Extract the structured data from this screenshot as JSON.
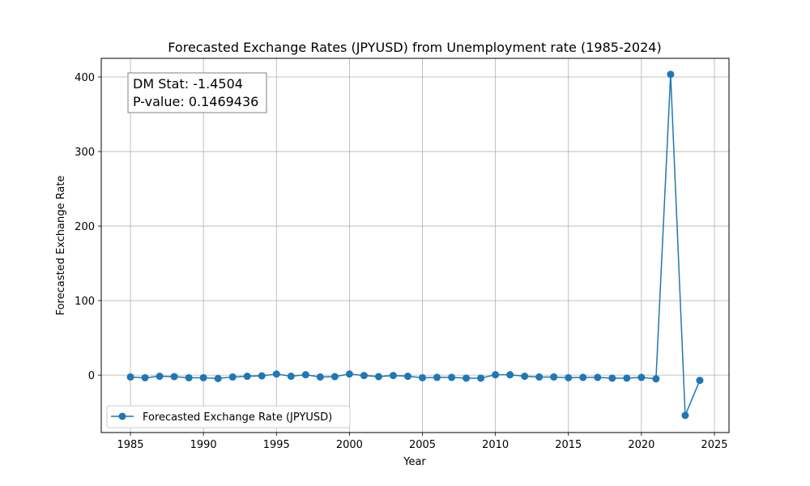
{
  "chart_data": {
    "type": "line",
    "title": "Forecasted Exchange Rates (JPYUSD) from Unemployment rate (1985-2024)",
    "xlabel": "Year",
    "ylabel": "Forecasted Exchange Rate",
    "xlim": [
      1983,
      2026
    ],
    "ylim": [
      -77,
      425
    ],
    "xticks": [
      1985,
      1990,
      1995,
      2000,
      2005,
      2010,
      2015,
      2020,
      2025
    ],
    "yticks": [
      0,
      100,
      200,
      300,
      400
    ],
    "grid": true,
    "legend_position": "lower-left",
    "annotation": {
      "lines": [
        "DM Stat: -1.4504",
        "P-value: 0.1469436"
      ],
      "position": "upper-left"
    },
    "series": [
      {
        "name": "Forecasted Exchange Rate (JPYUSD)",
        "color": "#1f77b4",
        "marker": "circle",
        "x": [
          1985,
          1986,
          1987,
          1988,
          1989,
          1990,
          1991,
          1992,
          1993,
          1994,
          1995,
          1996,
          1997,
          1998,
          1999,
          2000,
          2001,
          2002,
          2003,
          2004,
          2005,
          2006,
          2007,
          2008,
          2009,
          2010,
          2011,
          2012,
          2013,
          2014,
          2015,
          2016,
          2017,
          2018,
          2019,
          2020,
          2021,
          2022,
          2023,
          2024
        ],
        "y": [
          -2.5,
          -3.5,
          -1.5,
          -2.0,
          -3.5,
          -3.5,
          -4.5,
          -2.5,
          -1.5,
          -1.0,
          1.5,
          -1.5,
          0.5,
          -2.5,
          -2.0,
          1.5,
          -0.5,
          -2.0,
          -0.5,
          -1.5,
          -3.5,
          -3.0,
          -3.0,
          -4.0,
          -4.0,
          0.5,
          0.5,
          -1.5,
          -2.5,
          -2.5,
          -3.5,
          -3.0,
          -3.0,
          -4.0,
          -4.0,
          -3.0,
          -5.0,
          403.5,
          -54.0,
          -7.0
        ]
      }
    ]
  }
}
